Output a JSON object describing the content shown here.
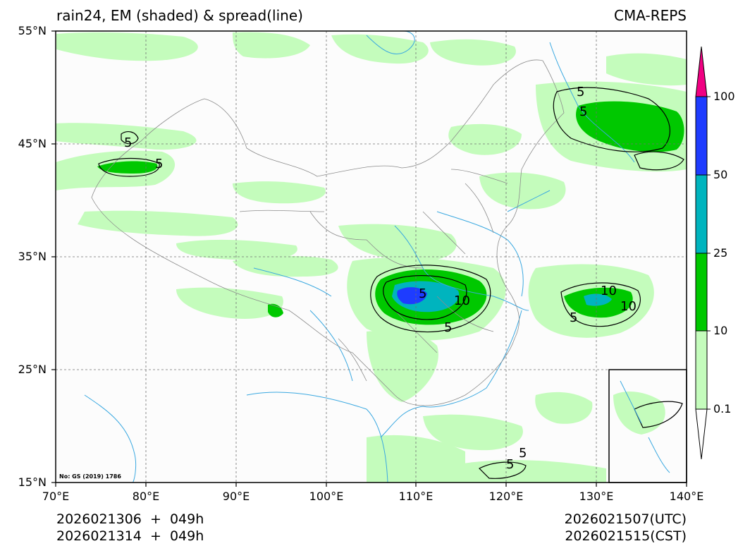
{
  "header": {
    "title_left": "rain24, EM (shaded) & spread(line)",
    "title_right": "CMA-REPS"
  },
  "axes": {
    "lat_labels": [
      "55°N",
      "45°N",
      "35°N",
      "25°N",
      "15°N"
    ],
    "lon_labels": [
      "70°E",
      "80°E",
      "90°E",
      "100°E",
      "110°E",
      "120°E",
      "130°E",
      "140°E"
    ],
    "lat_range": [
      15,
      55
    ],
    "lon_range": [
      70,
      140
    ]
  },
  "colorbar": {
    "levels": [
      "0.1",
      "10",
      "25",
      "50",
      "100"
    ],
    "colors": [
      "#ffffff",
      "#c4fcbc",
      "#00c800",
      "#00b4be",
      "#1e3cff",
      "#f00082"
    ]
  },
  "footer": {
    "init_utc": "2026021306  +  049h",
    "init_cst": "2026021314  +  049h",
    "valid_utc": "2026021507(UTC)",
    "valid_cst": "2026021515(CST)"
  },
  "map": {
    "attribution": "No: GS (2019) 1786",
    "contour_labels": [
      "5",
      "5",
      "5",
      "5",
      "10",
      "10",
      "5",
      "5",
      "10",
      "5",
      "5",
      "5"
    ],
    "colors": {
      "light_rain": "#c4fcbc",
      "moderate": "#00c800",
      "heavy": "#00b4be",
      "storm": "#1e3cff",
      "river": "#3aa8e0",
      "border": "#8c8c8c"
    }
  }
}
